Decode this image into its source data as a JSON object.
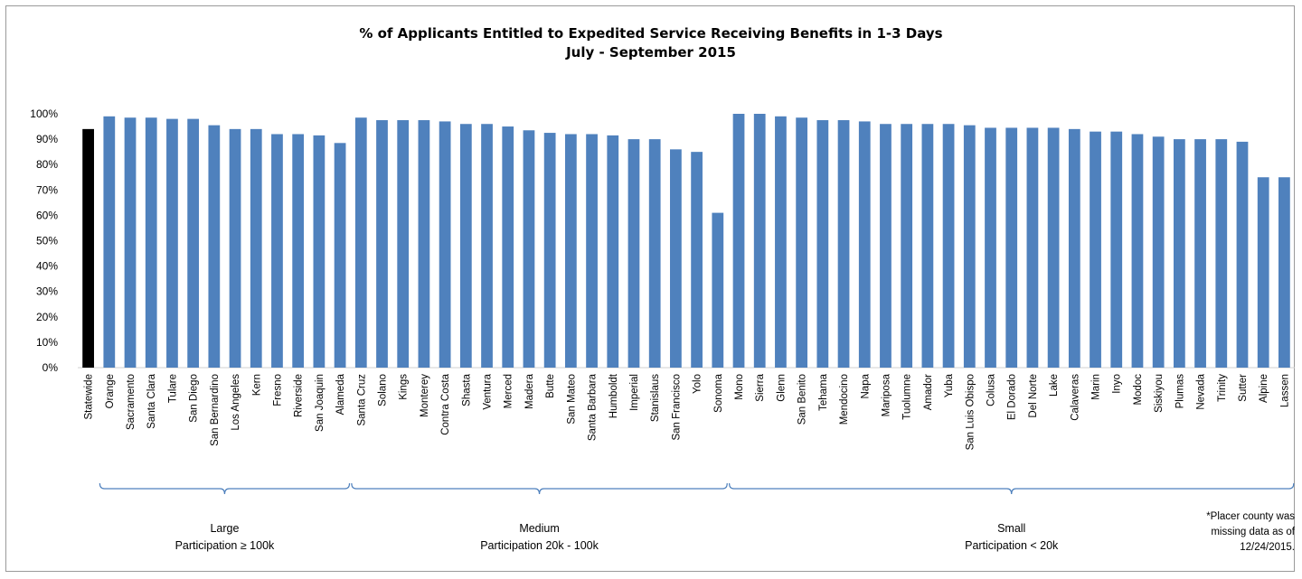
{
  "chart_data": {
    "type": "bar",
    "title": "% of Applicants Entitled to Expedited Service Receiving Benefits in 1-3 Days",
    "subtitle": "July - September 2015",
    "xlabel": "",
    "ylabel": "",
    "ylim": [
      0,
      100
    ],
    "yticks": [
      "0%",
      "10%",
      "20%",
      "30%",
      "40%",
      "50%",
      "60%",
      "70%",
      "80%",
      "90%",
      "100%"
    ],
    "grid": false,
    "legend": "none",
    "bar_color": "#4f81bd",
    "highlight_color": "#000000",
    "categories": [
      "Statewide",
      "Orange",
      "Sacramento",
      "Santa Clara",
      "Tulare",
      "San Diego",
      "San Bernardino",
      "Los Angeles",
      "Kern",
      "Fresno",
      "Riverside",
      "San Joaquin",
      "Alameda",
      "Santa Cruz",
      "Solano",
      "Kings",
      "Monterey",
      "Contra Costa",
      "Shasta",
      "Ventura",
      "Merced",
      "Madera",
      "Butte",
      "San Mateo",
      "Santa Barbara",
      "Humboldt",
      "Imperial",
      "Stanislaus",
      "San Francisco",
      "Yolo",
      "Sonoma",
      "Mono",
      "Sierra",
      "Glenn",
      "San Benito",
      "Tehama",
      "Mendocino",
      "Napa",
      "Mariposa",
      "Tuolumne",
      "Amador",
      "Yuba",
      "San Luis Obispo",
      "Colusa",
      "El Dorado",
      "Del Norte",
      "Lake",
      "Calaveras",
      "Marin",
      "Inyo",
      "Modoc",
      "Siskiyou",
      "Plumas",
      "Nevada",
      "Trinity",
      "Sutter",
      "Alpine",
      "Lassen"
    ],
    "values": [
      94,
      99,
      98.5,
      98.5,
      98,
      98,
      95.5,
      94,
      94,
      92,
      92,
      91.5,
      88.5,
      98.5,
      97.5,
      97.5,
      97.5,
      97,
      96,
      96,
      95,
      93.5,
      92.5,
      92,
      92,
      91.5,
      90,
      90,
      86,
      85,
      61,
      100,
      100,
      99,
      98.5,
      97.5,
      97.5,
      97,
      96,
      96,
      96,
      96,
      95.5,
      94.5,
      94.5,
      94.5,
      94.5,
      94,
      93,
      93,
      92,
      91,
      90,
      90,
      90,
      89,
      75,
      75
    ],
    "groups": [
      {
        "name": "Large",
        "criteria": "Participation ≥ 100k",
        "start": 1,
        "end": 12
      },
      {
        "name": "Medium",
        "criteria": "Participation 20k - 100k",
        "start": 13,
        "end": 30
      },
      {
        "name": "Small",
        "criteria": "Participation < 20k",
        "start": 31,
        "end": 57
      }
    ],
    "footnote": [
      "*Placer county was",
      "missing data as of",
      "12/24/2015."
    ]
  }
}
